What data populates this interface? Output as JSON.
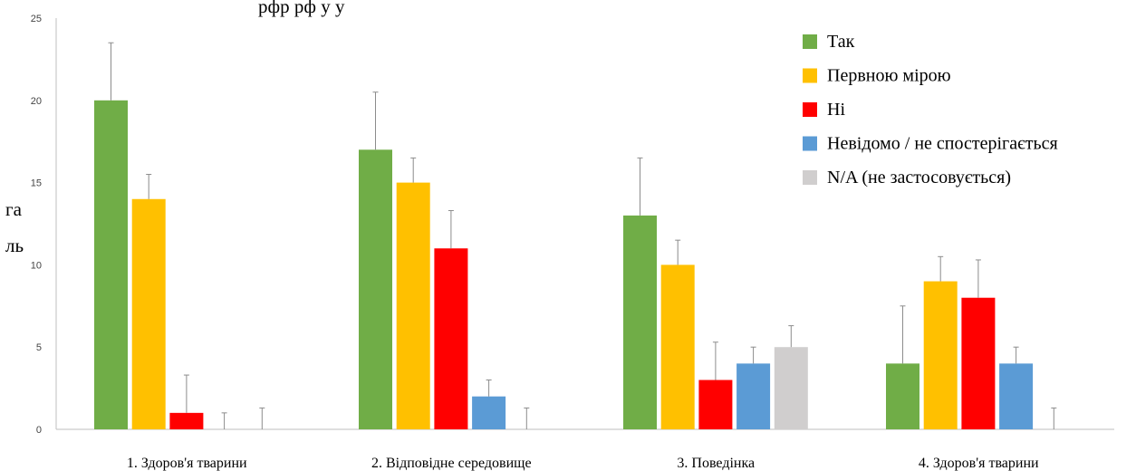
{
  "chart_data": {
    "type": "bar",
    "title_fragment": "рфр   рф у   у",
    "ylabel_lines": [
      "га",
      "ль"
    ],
    "ylim": [
      0,
      25
    ],
    "yticks": [
      0,
      5,
      10,
      15,
      20,
      25
    ],
    "categories": [
      "1. Здоров'я тварини",
      "2. Відповідне середовище",
      "3. Поведінка",
      "4. Здоров'я тварини"
    ],
    "series": [
      {
        "name": "Так",
        "color": "#70AD47",
        "values": [
          20,
          17,
          13,
          4
        ],
        "errors": [
          3.5,
          3.5,
          3.5,
          3.5
        ]
      },
      {
        "name": "Первною мірою",
        "color": "#FFC000",
        "values": [
          14,
          15,
          10,
          9
        ],
        "errors": [
          1.5,
          1.5,
          1.5,
          1.5
        ]
      },
      {
        "name": "Ні",
        "color": "#FF0000",
        "values": [
          1,
          11,
          3,
          8
        ],
        "errors": [
          2.3,
          2.3,
          2.3,
          2.3
        ]
      },
      {
        "name": "Невідомо / не спостерігається",
        "color": "#5B9BD5",
        "values": [
          0,
          2,
          4,
          4
        ],
        "errors": [
          1,
          1,
          1,
          1
        ]
      },
      {
        "name": "N/A (не застосовується)",
        "color": "#D0CECE",
        "values": [
          0,
          0,
          5,
          0
        ],
        "errors": [
          1.3,
          1.3,
          1.3,
          1.3
        ]
      }
    ],
    "legend_position": "top-right",
    "grid": false
  }
}
